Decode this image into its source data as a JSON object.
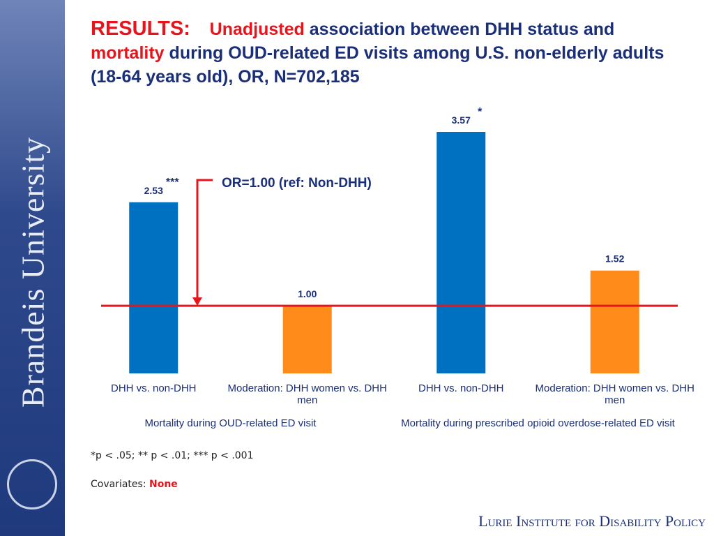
{
  "chart_data": {
    "type": "bar",
    "title": [
      "RESULTS:",
      "Unadjusted",
      "association between DHH status and",
      "mortality",
      "during OUD-related ED visits among U.S. non-elderly adults (18-64 years old), OR, N=702,185"
    ],
    "categories": [
      "DHH vs. non-DHH",
      "Moderation: DHH women vs. DHH men",
      "DHH vs. non-DHH",
      "Moderation: DHH women vs. DHH men"
    ],
    "groups": [
      "Mortality during OUD-related ED visit",
      "Mortality during prescribed opioid overdose-related ED visit"
    ],
    "values": [
      2.53,
      1,
      3.57,
      1.52
    ],
    "value_labels": [
      "2.53",
      "1.00",
      "3.57",
      "1.52"
    ],
    "significance": [
      "***",
      null,
      "*",
      null
    ],
    "colors": [
      "#0070c0",
      "#ff8c1a",
      "#0070c0",
      "#ff8c1a"
    ],
    "reference_line": {
      "value": 1,
      "label": "OR=1.00 (ref: Non-DHH)",
      "color": "#e8141b"
    },
    "footnote": "*p < .05; ** p < .01; *** p < .001",
    "covariates": [
      "Covariates:",
      "None"
    ]
  },
  "branding": {
    "university": "Brandeis University",
    "institute": "Lurie Institute for Disability Policy"
  }
}
